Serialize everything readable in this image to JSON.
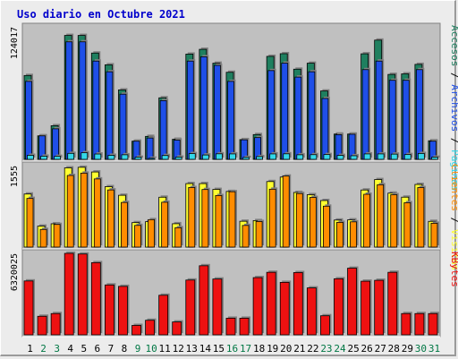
{
  "chart_data": {
    "type": "bar",
    "title": "Uso diario en Octubre 2021",
    "categories": [
      "1",
      "2",
      "3",
      "4",
      "5",
      "6",
      "7",
      "8",
      "9",
      "10",
      "11",
      "12",
      "13",
      "14",
      "15",
      "16",
      "17",
      "18",
      "19",
      "20",
      "21",
      "22",
      "23",
      "24",
      "25",
      "26",
      "27",
      "28",
      "29",
      "30",
      "31"
    ],
    "weekend_days": [
      "2",
      "3",
      "9",
      "10",
      "16",
      "17",
      "23",
      "24",
      "30",
      "31"
    ],
    "colors": {
      "title": "#0000cc",
      "weekday_label": "#000000",
      "weekend_label": "#007744",
      "plot_background": "#c0c0c0",
      "accesos": "#1f7f5f",
      "archivos": "#1f4fe8",
      "paginas": "#34d8e8",
      "visitas": "#ffff30",
      "clientes": "#ff8c00",
      "kbytes": "#ee1111"
    },
    "panels": [
      {
        "id": "top",
        "ymax_label": "124017",
        "ymax": 124017,
        "right_label_parts": [
          {
            "text": "Accesos",
            "color": "#1f7f5f"
          },
          {
            "text": " / ",
            "color": "#000000"
          },
          {
            "text": "Archivos",
            "color": "#1f4fe8"
          },
          {
            "text": " / ",
            "color": "#000000"
          },
          {
            "text": "Páginas",
            "color": "#34d8e8"
          }
        ],
        "series": [
          {
            "name": "Accesos",
            "values": [
              78500,
              22000,
              31500,
              116000,
              116000,
              99500,
              88500,
              65000,
              17000,
              21500,
              57600,
              18800,
              98500,
              103000,
              90000,
              81500,
              18500,
              23200,
              96400,
              98900,
              84400,
              90000,
              64000,
              23700,
              23700,
              98800,
              111600,
              79500,
              80000,
              88900,
              17400
            ]
          },
          {
            "name": "Archivos",
            "values": [
              73000,
              22000,
              28600,
              110000,
              110000,
              92000,
              82000,
              61000,
              17000,
              20000,
              55000,
              18000,
              92000,
              96000,
              88000,
              73000,
              18300,
              20400,
              83100,
              90000,
              77000,
              82000,
              57000,
              23100,
              23500,
              84000,
              92000,
              74000,
              74000,
              84000,
              17000
            ]
          },
          {
            "name": "Páginas",
            "values": [
              3800,
              3000,
              2800,
              5600,
              6200,
              5000,
              3800,
              4300,
              2000,
              1000,
              3600,
              2100,
              5400,
              4100,
              5200,
              5100,
              1800,
              2600,
              5100,
              5200,
              4300,
              4400,
              4500,
              3700,
              3400,
              5100,
              5100,
              4900,
              4500,
              5500,
              2000
            ]
          }
        ]
      },
      {
        "id": "middle",
        "ymax_label": "1555",
        "ymax": 1555,
        "right_label_parts": [
          {
            "text": "Clientes",
            "color": "#ff8c00"
          },
          {
            "text": " / ",
            "color": "#000000"
          },
          {
            "text": "Visitas",
            "color": "#ffff30"
          }
        ],
        "series": [
          {
            "name": "Visitas",
            "values": [
              1013,
              400,
              445,
              1512,
              1523,
              1434,
              1153,
              989,
              467,
              485,
              952,
              446,
              1212,
              1212,
              1101,
              1062,
              493,
              506,
              1251,
              1337,
              1043,
              1000,
              889,
              516,
              520,
              1090,
              1289,
              1030,
              953,
              1196,
              491
            ]
          },
          {
            "name": "Clientes",
            "values": [
              929,
              337,
              432,
              1367,
              1412,
              1301,
              1091,
              852,
              414,
              524,
              856,
              370,
              1137,
              1099,
              984,
              1057,
              413,
              488,
              1105,
              1356,
              1022,
              948,
              781,
              472,
              482,
              1008,
              1190,
              1000,
              847,
              1136,
              455
            ]
          }
        ]
      },
      {
        "id": "bottom",
        "ymax_label": "6320025",
        "ymax": 6320025,
        "right_label_parts": [
          {
            "text": "KBytes",
            "color": "#ee1111"
          }
        ],
        "series": [
          {
            "name": "KBytes",
            "values": [
              4180000,
              1440000,
              1650000,
              6320000,
              6270000,
              5600000,
              3870000,
              3760000,
              730000,
              1130000,
              3070000,
              1000000,
              4250000,
              5360000,
              4330000,
              1290000,
              1290000,
              4440000,
              4850000,
              4070000,
              4830000,
              3640000,
              1480000,
              4350000,
              5170000,
              4160000,
              4230000,
              4850000,
              1650000,
              1650000,
              1650000
            ]
          }
        ]
      }
    ]
  }
}
